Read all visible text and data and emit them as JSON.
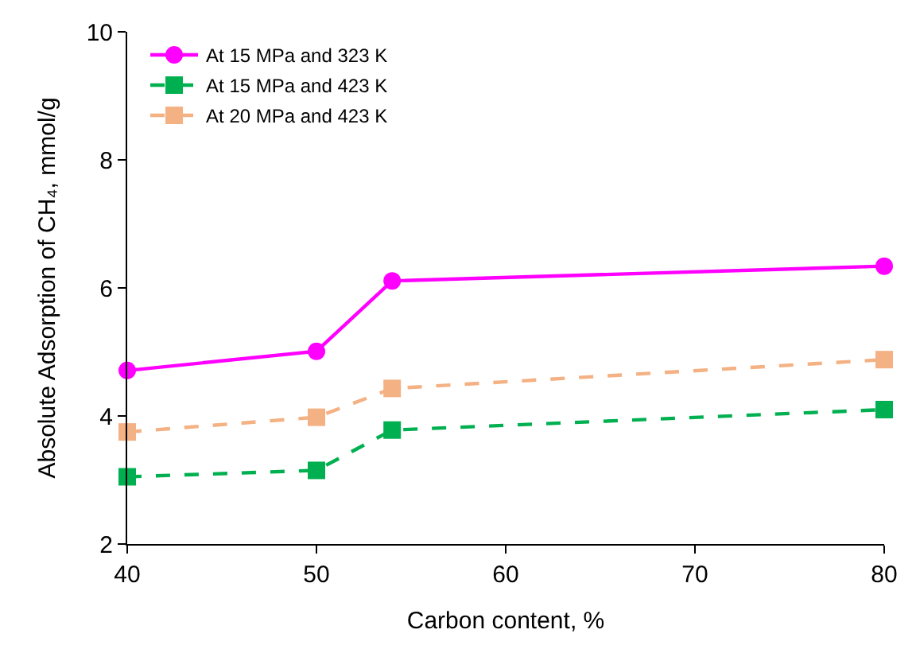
{
  "chart_data": {
    "type": "line",
    "xlabel": "Carbon content, %",
    "ylabel": "Absolute Adsorption of CH₄, mmol/g",
    "x": [
      40,
      50,
      54,
      80
    ],
    "series": [
      {
        "name": "At 15 MPa and 323 K",
        "color": "#ff00ff",
        "values": [
          4.71,
          5.01,
          6.11,
          6.34
        ],
        "marker": "circle",
        "line_style": "solid"
      },
      {
        "name": "At 15 MPa and 423 K",
        "color": "#00b050",
        "values": [
          3.05,
          3.15,
          3.78,
          4.1
        ],
        "marker": "square",
        "line_style": "dashed"
      },
      {
        "name": "At 20 MPa and 423 K",
        "color": "#f4b183",
        "values": [
          3.75,
          3.98,
          4.43,
          4.88
        ],
        "marker": "square",
        "line_style": "dashed"
      }
    ],
    "xlim": [
      40,
      80
    ],
    "xticks": [
      40,
      50,
      60,
      70,
      80
    ],
    "ylim": [
      2,
      10
    ],
    "yticks": [
      2,
      4,
      6,
      8,
      10
    ],
    "grid": false,
    "legend": "top left"
  }
}
